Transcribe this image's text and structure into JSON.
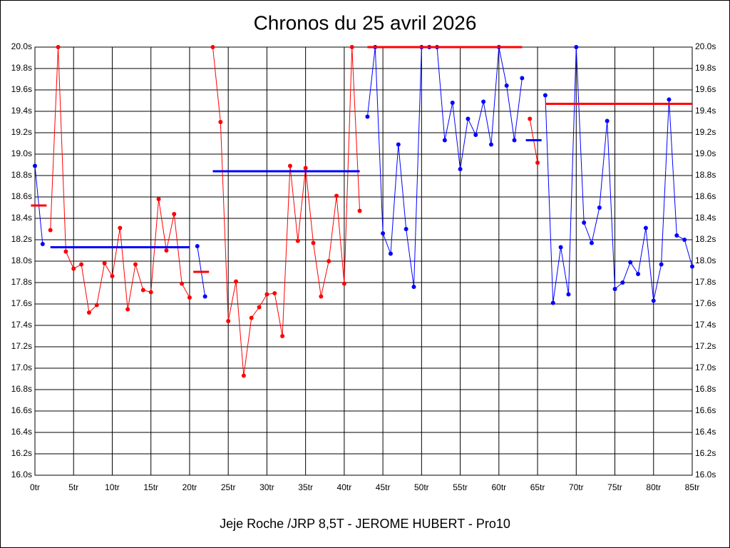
{
  "chart_data": {
    "type": "line",
    "title": "Chronos du 25 avril 2026",
    "footer": "Jeje Roche /JRP 8,5T - JEROME HUBERT - Pro10",
    "x": [
      0,
      1,
      2,
      3,
      4,
      5,
      6,
      7,
      8,
      9,
      10,
      11,
      12,
      13,
      14,
      15,
      16,
      17,
      18,
      19,
      20,
      21,
      22,
      23,
      24,
      25,
      26,
      27,
      28,
      29,
      30,
      31,
      32,
      33,
      34,
      35,
      36,
      37,
      38,
      39,
      40,
      41,
      42,
      43,
      44,
      45,
      46,
      47,
      48,
      49,
      50,
      51,
      52,
      53,
      54,
      55,
      56,
      57,
      58,
      59,
      60,
      61,
      62,
      63,
      64,
      65,
      66,
      67,
      68,
      69,
      70,
      71,
      72,
      73,
      74,
      75,
      76,
      77,
      78,
      79,
      80,
      81,
      82,
      83,
      84,
      85
    ],
    "series": [
      {
        "color": "#ff0000",
        "values": [
          null,
          null,
          18.29,
          20.0,
          18.09,
          17.93,
          17.97,
          17.52,
          17.59,
          17.98,
          17.86,
          18.31,
          17.55,
          17.97,
          17.73,
          17.71,
          18.58,
          18.1,
          18.44,
          17.79,
          17.66,
          null,
          null,
          20.0,
          19.3,
          17.44,
          17.81,
          16.93,
          17.47,
          17.57,
          17.69,
          17.7,
          17.3,
          18.89,
          18.19,
          18.87,
          18.17,
          17.67,
          18.0,
          18.61,
          17.79,
          20.0,
          18.47,
          null,
          null,
          null,
          null,
          null,
          null,
          null,
          null,
          null,
          null,
          null,
          null,
          null,
          null,
          null,
          null,
          null,
          null,
          null,
          null,
          null,
          19.33,
          18.92,
          null,
          null,
          null,
          null,
          null,
          null,
          null,
          null,
          null,
          null,
          null,
          null,
          null,
          null,
          null,
          null,
          null,
          null,
          null,
          null
        ]
      },
      {
        "color": "#0000ff",
        "values": [
          18.89,
          18.16,
          null,
          null,
          null,
          null,
          null,
          null,
          null,
          null,
          null,
          null,
          null,
          null,
          null,
          null,
          null,
          null,
          null,
          null,
          null,
          18.14,
          17.67,
          null,
          null,
          null,
          null,
          null,
          null,
          null,
          null,
          null,
          null,
          null,
          null,
          null,
          null,
          null,
          null,
          null,
          null,
          null,
          null,
          19.35,
          20.0,
          18.26,
          18.07,
          19.09,
          18.3,
          17.76,
          20.0,
          20.0,
          20.0,
          19.13,
          19.48,
          18.86,
          19.33,
          19.18,
          19.49,
          19.09,
          20.0,
          19.64,
          19.13,
          19.71,
          null,
          null,
          19.55,
          17.61,
          18.13,
          17.69,
          20.0,
          18.36,
          18.17,
          18.5,
          19.31,
          17.74,
          17.8,
          17.99,
          17.88,
          18.31,
          17.63,
          17.97,
          19.51,
          18.24,
          18.2,
          17.95
        ]
      }
    ],
    "averages": [
      {
        "color": "#ff0000",
        "start": 0,
        "end": 1,
        "value": 18.52
      },
      {
        "color": "#0000ff",
        "start": 2,
        "end": 20,
        "value": 18.13
      },
      {
        "color": "#ff0000",
        "start": 21,
        "end": 22,
        "value": 17.9
      },
      {
        "color": "#0000ff",
        "start": 23,
        "end": 42,
        "value": 18.84
      },
      {
        "color": "#ff0000",
        "start": 43,
        "end": 63,
        "value": 20.0
      },
      {
        "color": "#0000ff",
        "start": 64,
        "end": 65,
        "value": 19.13
      },
      {
        "color": "#ff0000",
        "start": 66,
        "end": 85,
        "value": 19.47
      }
    ],
    "xlim": [
      0,
      85
    ],
    "xticks": [
      {
        "value": 0,
        "label": "0tr"
      },
      {
        "value": 5,
        "label": "5tr"
      },
      {
        "value": 10,
        "label": "10tr"
      },
      {
        "value": 15,
        "label": "15tr"
      },
      {
        "value": 20,
        "label": "20tr"
      },
      {
        "value": 25,
        "label": "25tr"
      },
      {
        "value": 30,
        "label": "30tr"
      },
      {
        "value": 35,
        "label": "35tr"
      },
      {
        "value": 40,
        "label": "40tr"
      },
      {
        "value": 45,
        "label": "45tr"
      },
      {
        "value": 50,
        "label": "50tr"
      },
      {
        "value": 55,
        "label": "55tr"
      },
      {
        "value": 60,
        "label": "60tr"
      },
      {
        "value": 65,
        "label": "65tr"
      },
      {
        "value": 70,
        "label": "70tr"
      },
      {
        "value": 75,
        "label": "75tr"
      },
      {
        "value": 80,
        "label": "80tr"
      },
      {
        "value": 85,
        "label": "85tr"
      }
    ],
    "ylim": [
      16.0,
      20.0
    ],
    "yticks": [
      {
        "value": 16.0,
        "label": "16.0s"
      },
      {
        "value": 16.2,
        "label": "16.2s"
      },
      {
        "value": 16.4,
        "label": "16.4s"
      },
      {
        "value": 16.6,
        "label": "16.6s"
      },
      {
        "value": 16.8,
        "label": "16.8s"
      },
      {
        "value": 17.0,
        "label": "17.0s"
      },
      {
        "value": 17.2,
        "label": "17.2s"
      },
      {
        "value": 17.4,
        "label": "17.4s"
      },
      {
        "value": 17.6,
        "label": "17.6s"
      },
      {
        "value": 17.8,
        "label": "17.8s"
      },
      {
        "value": 18.0,
        "label": "18.0s"
      },
      {
        "value": 18.2,
        "label": "18.2s"
      },
      {
        "value": 18.4,
        "label": "18.4s"
      },
      {
        "value": 18.6,
        "label": "18.6s"
      },
      {
        "value": 18.8,
        "label": "18.8s"
      },
      {
        "value": 19.0,
        "label": "19.0s"
      },
      {
        "value": 19.2,
        "label": "19.2s"
      },
      {
        "value": 19.4,
        "label": "19.4s"
      },
      {
        "value": 19.6,
        "label": "19.6s"
      },
      {
        "value": 19.8,
        "label": "19.8s"
      },
      {
        "value": 20.0,
        "label": "20.0s"
      }
    ],
    "grid": true
  }
}
